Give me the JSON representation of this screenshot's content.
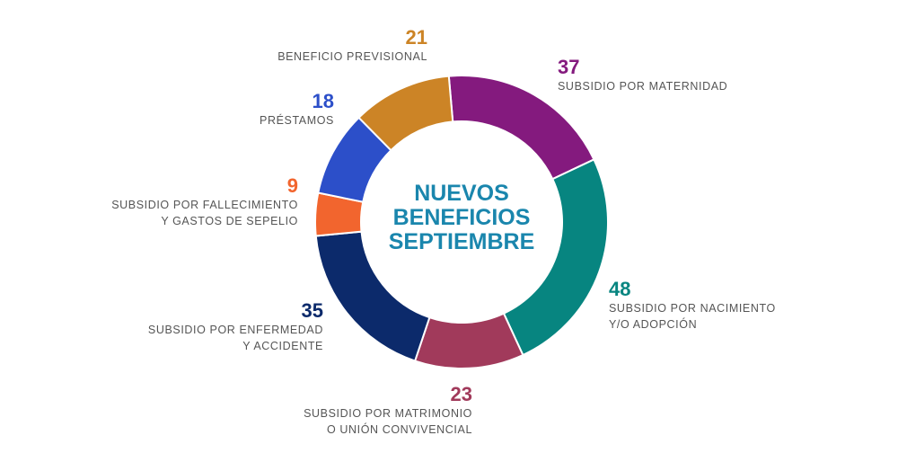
{
  "center_title": [
    "NUEVOS",
    "BENEFICIOS",
    "SEPTIEMBRE"
  ],
  "chart_data": {
    "type": "pie",
    "title": "NUEVOS BENEFICIOS SEPTIEMBRE",
    "slices": [
      {
        "label": "SUBSIDIO POR MATERNIDAD",
        "value": 37,
        "color": "#841a7e"
      },
      {
        "label": "SUBSIDIO POR NACIMIENTO Y/O ADOPCIÓN",
        "value": 48,
        "color": "#078580"
      },
      {
        "label": "SUBSIDIO POR MATRIMONIO O UNIÓN CONVIVENCIAL",
        "value": 23,
        "color": "#a13a5b"
      },
      {
        "label": "SUBSIDIO POR ENFERMEDAD Y ACCIDENTE",
        "value": 35,
        "color": "#0c2a6b"
      },
      {
        "label": "SUBSIDIO POR FALLECIMIENTO Y GASTOS DE SEPELIO",
        "value": 9,
        "color": "#f2652e"
      },
      {
        "label": "PRÉSTAMOS",
        "value": 18,
        "color": "#2c4fc9"
      },
      {
        "label": "BENEFICIO PREVISIONAL",
        "value": 21,
        "color": "#cc8426"
      }
    ]
  },
  "labels": {
    "maternidad": {
      "value": "37",
      "lines": [
        "SUBSIDIO POR MATERNIDAD"
      ]
    },
    "nacimiento": {
      "value": "48",
      "lines": [
        "SUBSIDIO POR NACIMIENTO",
        "Y/O ADOPCIÓN"
      ]
    },
    "matrimonio": {
      "value": "23",
      "lines": [
        "SUBSIDIO POR MATRIMONIO",
        "O UNIÓN CONVIVENCIAL"
      ]
    },
    "enfermedad": {
      "value": "35",
      "lines": [
        "SUBSIDIO POR ENFERMEDAD",
        "Y ACCIDENTE"
      ]
    },
    "fallecimiento": {
      "value": "9",
      "lines": [
        "SUBSIDIO POR FALLECIMIENTO",
        "Y GASTOS DE SEPELIO"
      ]
    },
    "prestamos": {
      "value": "18",
      "lines": [
        "PRÉSTAMOS"
      ]
    },
    "previsional": {
      "value": "21",
      "lines": [
        "BENEFICIO PREVISIONAL"
      ]
    }
  }
}
